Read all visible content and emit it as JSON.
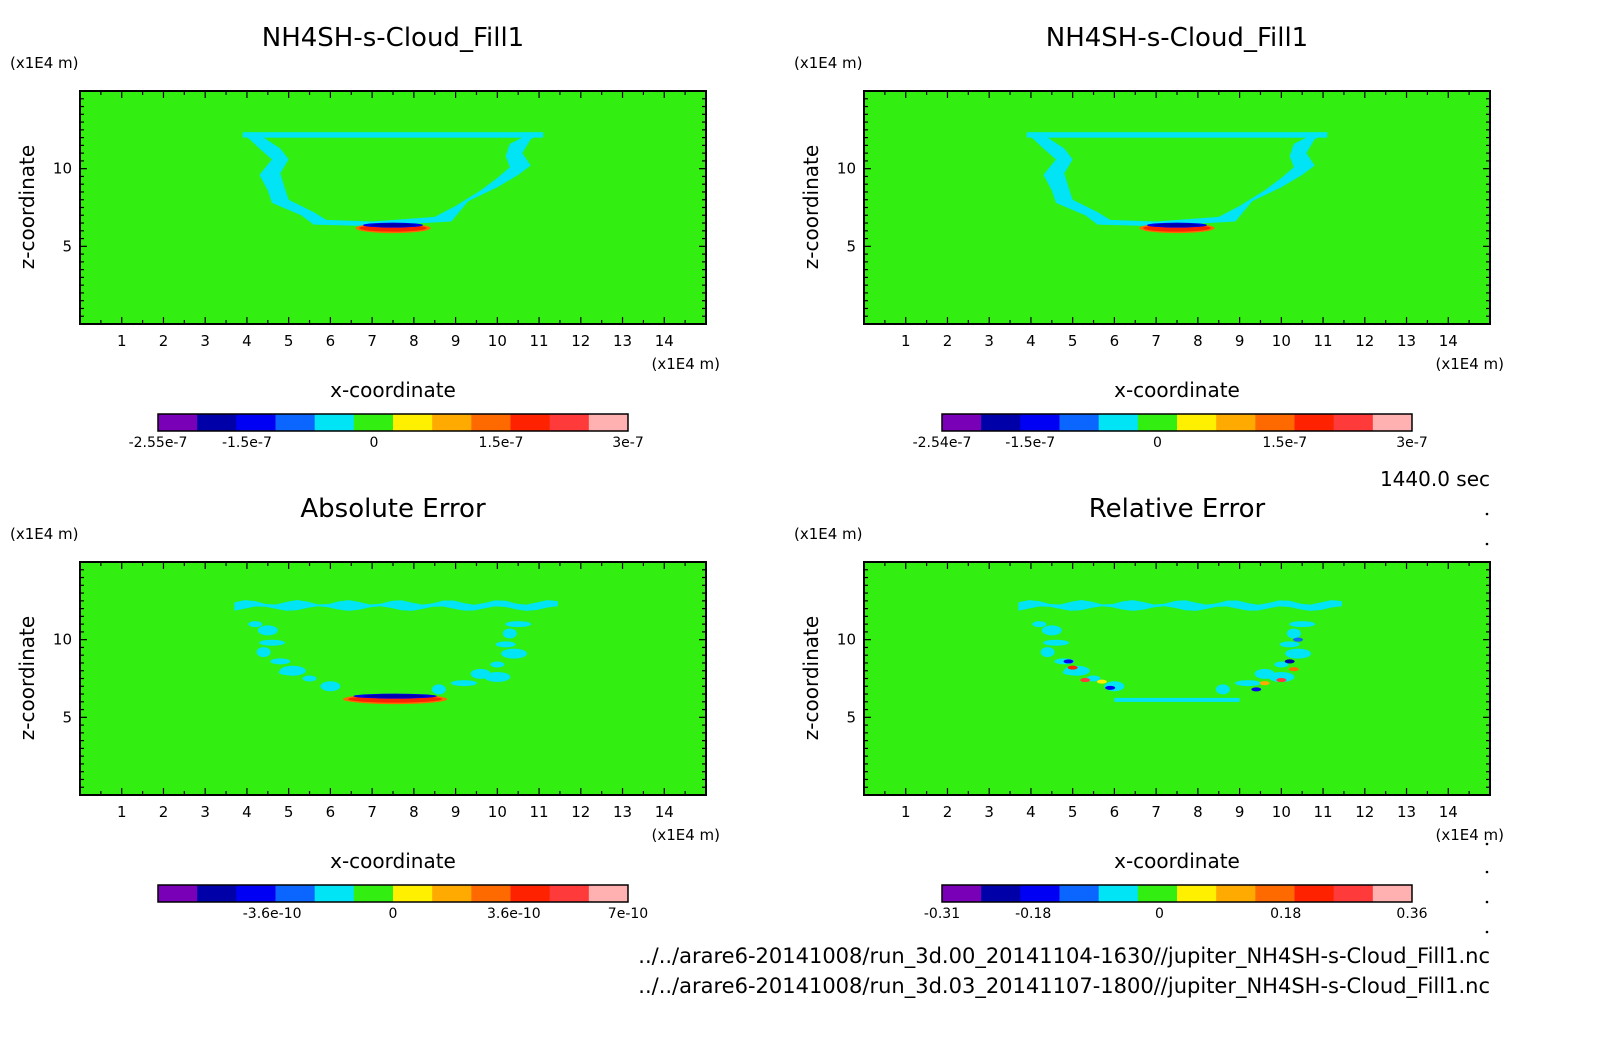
{
  "colors": {
    "field_green": "#33ee11",
    "contour_cyan": "#00e4f5",
    "frame": "#000000"
  },
  "colorbar_palette": [
    "#7a00b8",
    "#0000a8",
    "#0000f5",
    "#0a66ff",
    "#00e4f5",
    "#33ee11",
    "#fff000",
    "#ffaa00",
    "#ff6a00",
    "#ff2200",
    "#ff3a3a",
    "#ffb0b0"
  ],
  "timestamp": "1440.0 sec",
  "file_paths": [
    "../../arare6-20141008/run_3d.00_20141104-1630//jupiter_NH4SH-s-Cloud_Fill1.nc",
    "../../arare6-20141008/run_3d.03_20141107-1800//jupiter_NH4SH-s-Cloud_Fill1.nc"
  ],
  "chart_data": [
    {
      "type": "heatmap",
      "title": "NH4SH-s-Cloud_Fill1",
      "xlabel": "x-coordinate",
      "ylabel": "z-coordinate",
      "x_unit": "(x1E4 m)",
      "y_unit": "(x1E4 m)",
      "xlim": [
        0,
        15
      ],
      "ylim": [
        0,
        15
      ],
      "x_ticks": [
        1,
        2,
        3,
        4,
        5,
        6,
        7,
        8,
        9,
        10,
        11,
        12,
        13,
        14
      ],
      "y_ticks": [
        5,
        10
      ],
      "colorbar": {
        "range": [
          -2.55e-07,
          3e-07
        ],
        "labels": [
          "-2.55e-7",
          "-1.5e-7",
          "0",
          "1.5e-7",
          "3e-7"
        ]
      },
      "pattern": "cloud_shell"
    },
    {
      "type": "heatmap",
      "title": "NH4SH-s-Cloud_Fill1",
      "xlabel": "x-coordinate",
      "ylabel": "z-coordinate",
      "x_unit": "(x1E4 m)",
      "y_unit": "(x1E4 m)",
      "xlim": [
        0,
        15
      ],
      "ylim": [
        0,
        15
      ],
      "x_ticks": [
        1,
        2,
        3,
        4,
        5,
        6,
        7,
        8,
        9,
        10,
        11,
        12,
        13,
        14
      ],
      "y_ticks": [
        5,
        10
      ],
      "colorbar": {
        "range": [
          -2.54e-07,
          3e-07
        ],
        "labels": [
          "-2.54e-7",
          "-1.5e-7",
          "0",
          "1.5e-7",
          "3e-7"
        ]
      },
      "pattern": "cloud_shell"
    },
    {
      "type": "heatmap",
      "title": "Absolute Error",
      "xlabel": "x-coordinate",
      "ylabel": "z-coordinate",
      "x_unit": "(x1E4 m)",
      "y_unit": "(x1E4 m)",
      "xlim": [
        0,
        15
      ],
      "ylim": [
        0,
        15
      ],
      "x_ticks": [
        1,
        2,
        3,
        4,
        5,
        6,
        7,
        8,
        9,
        10,
        11,
        12,
        13,
        14
      ],
      "y_ticks": [
        5,
        10
      ],
      "colorbar": {
        "range": [
          -7e-10,
          7e-10
        ],
        "labels": [
          "-3.6e-10",
          "0",
          "3.6e-10",
          "7e-10"
        ]
      },
      "pattern": "speckle_shell"
    },
    {
      "type": "heatmap",
      "title": "Relative Error",
      "xlabel": "x-coordinate",
      "ylabel": "z-coordinate",
      "x_unit": "(x1E4 m)",
      "y_unit": "(x1E4 m)",
      "xlim": [
        0,
        15
      ],
      "ylim": [
        0,
        15
      ],
      "x_ticks": [
        1,
        2,
        3,
        4,
        5,
        6,
        7,
        8,
        9,
        10,
        11,
        12,
        13,
        14
      ],
      "y_ticks": [
        5,
        10
      ],
      "colorbar": {
        "range": [
          -0.31,
          0.36
        ],
        "labels": [
          "-0.31",
          "-0.18",
          "0",
          "0.18",
          "0.36"
        ]
      },
      "pattern": "speckle_shell_rel"
    }
  ]
}
